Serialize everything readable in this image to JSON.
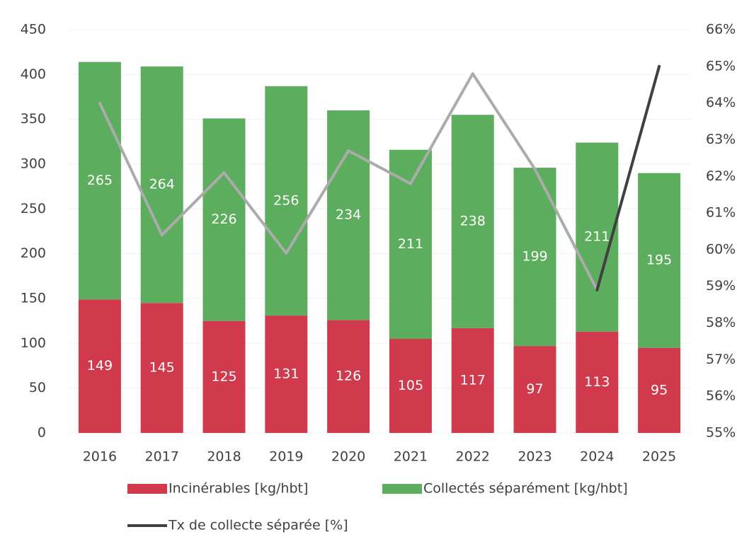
{
  "chart_data": {
    "type": "bar",
    "stacked": true,
    "categories": [
      "2016",
      "2017",
      "2018",
      "2019",
      "2020",
      "2021",
      "2022",
      "2023",
      "2024",
      "2025"
    ],
    "series": [
      {
        "name": "Incinérables [kg/hbt]",
        "color": "#d03a4c",
        "values": [
          149,
          145,
          125,
          131,
          126,
          105,
          117,
          97,
          113,
          95
        ]
      },
      {
        "name": "Collectés séparément [kg/hbt]",
        "color": "#5cad5e",
        "values": [
          265,
          264,
          226,
          256,
          234,
          211,
          238,
          199,
          211,
          195
        ]
      },
      {
        "name": "Tx de collecte séparée [%]",
        "type": "line",
        "axis": "y2",
        "color": "#404040",
        "segment_colors": [
          "#ababab",
          "#ababab",
          "#ababab",
          "#ababab",
          "#ababab",
          "#ababab",
          "#ababab",
          "#ababab",
          "#404040"
        ],
        "values": [
          64.0,
          60.4,
          62.1,
          59.9,
          62.7,
          61.8,
          64.8,
          62.2,
          58.9,
          65.0
        ]
      }
    ],
    "ylim": [
      0,
      450
    ],
    "yticks": [
      0,
      50,
      100,
      150,
      200,
      250,
      300,
      350,
      400,
      450
    ],
    "y2lim": [
      55,
      66
    ],
    "y2ticks": [
      {
        "value": 55,
        "label": "55%"
      },
      {
        "value": 56,
        "label": "56%"
      },
      {
        "value": 57,
        "label": "57%"
      },
      {
        "value": 58,
        "label": "58%"
      },
      {
        "value": 59,
        "label": "59%"
      },
      {
        "value": 60,
        "label": "60%"
      },
      {
        "value": 61,
        "label": "61%"
      },
      {
        "value": 62,
        "label": "62%"
      },
      {
        "value": 63,
        "label": "63%"
      },
      {
        "value": 64,
        "label": "64%"
      },
      {
        "value": 65,
        "label": "65%"
      },
      {
        "value": 66,
        "label": "66%"
      }
    ],
    "grid": true,
    "legend": "bottom"
  }
}
